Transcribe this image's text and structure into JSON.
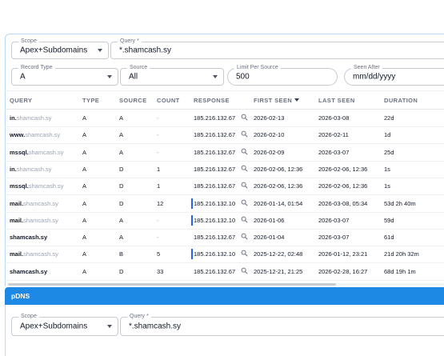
{
  "filters": {
    "scope": {
      "label": "Scope",
      "value": "Apex+Subdomains"
    },
    "query": {
      "label": "Query *",
      "value": "*.shamcash.sy"
    },
    "record_type": {
      "label": "Record Type",
      "value": "A"
    },
    "source": {
      "label": "Source",
      "value": "All"
    },
    "limit": {
      "label": "Limit Per Source",
      "value": "500"
    },
    "seen_after": {
      "label": "Seen After",
      "value": "mm/dd/yyyy"
    }
  },
  "table": {
    "columns": {
      "query": "QUERY",
      "type": "TYPE",
      "source": "SOURCE",
      "count": "COUNT",
      "response": "RESPONSE",
      "first_seen": "FIRST SEEN",
      "last_seen": "LAST SEEN",
      "duration": "DURATION"
    },
    "rows": [
      {
        "sub": "in.",
        "domain": "shamcash.sy",
        "type": "A",
        "source": "A",
        "count": "-",
        "response": "185.216.132.67",
        "first_seen": "2026-02-13",
        "last_seen": "2026-03-08",
        "duration": "22d"
      },
      {
        "sub": "www.",
        "domain": "shamcash.sy",
        "type": "A",
        "source": "A",
        "count": "-",
        "response": "185.216.132.67",
        "first_seen": "2026-02-10",
        "last_seen": "2026-02-11",
        "duration": "1d"
      },
      {
        "sub": "mssql.",
        "domain": "shamcash.sy",
        "type": "A",
        "source": "A",
        "count": "-",
        "response": "185.216.132.67",
        "first_seen": "2026-02-09",
        "last_seen": "2026-03-07",
        "duration": "25d"
      },
      {
        "sub": "in.",
        "domain": "shamcash.sy",
        "type": "A",
        "source": "D",
        "count": "1",
        "response": "185.216.132.67",
        "first_seen": "2026-02-06, 12:36",
        "last_seen": "2026-02-06, 12:36",
        "duration": "1s"
      },
      {
        "sub": "mssql.",
        "domain": "shamcash.sy",
        "type": "A",
        "source": "D",
        "count": "1",
        "response": "185.216.132.67",
        "first_seen": "2026-02-06, 12:36",
        "last_seen": "2026-02-06, 12:36",
        "duration": "1s"
      },
      {
        "sub": "mail.",
        "domain": "shamcash.sy",
        "type": "A",
        "source": "D",
        "count": "12",
        "response": "185.216.132.10",
        "first_seen": "2026-01-14, 01:54",
        "last_seen": "2026-03-08, 05:34",
        "duration": "53d 2h 40m"
      },
      {
        "sub": "mail.",
        "domain": "shamcash.sy",
        "type": "A",
        "source": "A",
        "count": "-",
        "response": "185.216.132.10",
        "first_seen": "2026-01-06",
        "last_seen": "2026-03-07",
        "duration": "59d"
      },
      {
        "sub": "",
        "domain": "shamcash.sy",
        "type": "A",
        "source": "A",
        "count": "-",
        "response": "185.216.132.67",
        "first_seen": "2026-01-04",
        "last_seen": "2026-03-07",
        "duration": "61d"
      },
      {
        "sub": "mail.",
        "domain": "shamcash.sy",
        "type": "A",
        "source": "B",
        "count": "5",
        "response": "185.216.132.10",
        "first_seen": "2025-12-22, 02:48",
        "last_seen": "2026-01-12, 23:21",
        "duration": "21d 20h 32m"
      },
      {
        "sub": "",
        "domain": "shamcash.sy",
        "type": "A",
        "source": "D",
        "count": "33",
        "response": "185.216.132.67",
        "first_seen": "2025-12-21, 21:25",
        "last_seen": "2026-02-28, 16:27",
        "duration": "68d 19h 1m"
      }
    ]
  },
  "pdns": {
    "title": "pDNS",
    "scope": {
      "label": "Scope",
      "value": "Apex+Subdomains"
    },
    "query": {
      "label": "Query *",
      "value": "*.shamcash.sy"
    }
  },
  "colors": {
    "accent": "#1e88e5",
    "response_marker": "#2563eb"
  }
}
